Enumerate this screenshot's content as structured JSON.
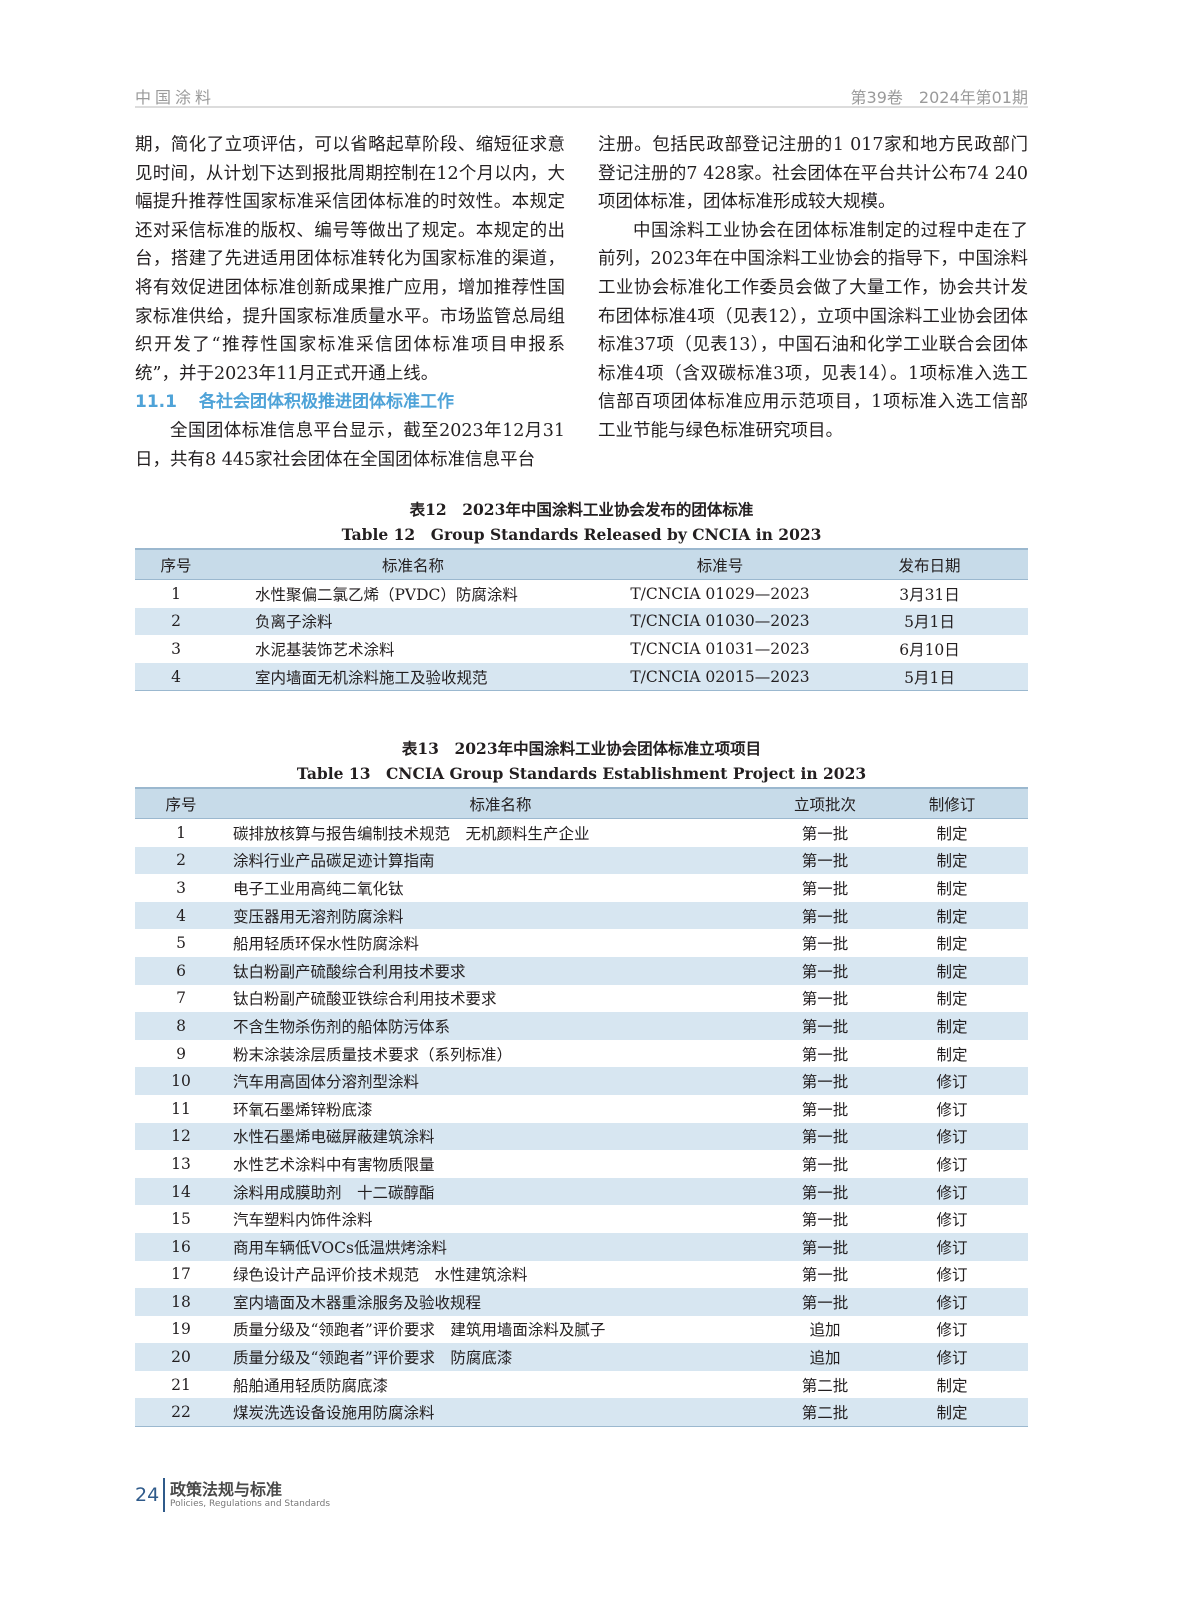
{
  "header": {
    "journal": "中国涂料",
    "issue": "第39卷　2024年第01期"
  },
  "left_column": {
    "para1": "期，简化了立项评估，可以省略起草阶段、缩短征求意见时间，从计划下达到报批周期控制在12个月以内，大幅提升推荐性国家标准采信团体标准的时效性。本规定还对采信标准的版权、编号等做出了规定。本规定的出台，搭建了先进适用团体标准转化为国家标准的渠道，将有效促进团体标准创新成果推广应用，增加推荐性国家标准供给，提升国家标准质量水平。市场监管总局组织开发了“推荐性国家标准采信团体标准项目申报系统”，并于2023年11月正式开通上线。",
    "section_number": "11.1",
    "section_title": "各社会团体积极推进团体标准工作",
    "para2": "全国团体标准信息平台显示，截至2023年12月31日，共有8 445家社会团体在全国团体标准信息平台"
  },
  "right_column": {
    "para1": "注册。包括民政部登记注册的1 017家和地方民政部门登记注册的7 428家。社会团体在平台共计公布74 240项团体标准，团体标准形成较大规模。",
    "para2": "中国涂料工业协会在团体标准制定的过程中走在了前列，2023年在中国涂料工业协会的指导下，中国涂料工业协会标准化工作委员会做了大量工作，协会共计发布团体标准4项（见表12），立项中国涂料工业协会团体标准37项（见表13），中国石油和化学工业联合会团体标准4项（含双碳标准3项，见表14）。1项标准入选工信部百项团体标准应用示范项目，1项标准入选工信部工业节能与绿色标准研究项目。"
  },
  "table12": {
    "title_zh": "表12　2023年中国涂料工业协会发布的团体标准",
    "title_en": "Table 12　Group Standards Released by CNCIA in 2023",
    "headers": [
      "序号",
      "标准名称",
      "标准号",
      "发布日期"
    ],
    "rows": [
      [
        "1",
        "水性聚偏二氯乙烯（PVDC）防腐涂料",
        "T/CNCIA 01029—2023",
        "3月31日"
      ],
      [
        "2",
        "负离子涂料",
        "T/CNCIA 01030—2023",
        "5月1日"
      ],
      [
        "3",
        "水泥基装饰艺术涂料",
        "T/CNCIA 01031—2023",
        "6月10日"
      ],
      [
        "4",
        "室内墙面无机涂料施工及验收规范",
        "T/CNCIA 02015—2023",
        "5月1日"
      ]
    ]
  },
  "table13": {
    "title_zh": "表13　2023年中国涂料工业协会团体标准立项项目",
    "title_en": "Table 13　CNCIA Group Standards Establishment Project in 2023",
    "headers": [
      "序号",
      "标准名称",
      "立项批次",
      "制修订"
    ],
    "rows": [
      [
        "1",
        "碳排放核算与报告编制技术规范　无机颜料生产企业",
        "第一批",
        "制定"
      ],
      [
        "2",
        "涂料行业产品碳足迹计算指南",
        "第一批",
        "制定"
      ],
      [
        "3",
        "电子工业用高纯二氧化钛",
        "第一批",
        "制定"
      ],
      [
        "4",
        "变压器用无溶剂防腐涂料",
        "第一批",
        "制定"
      ],
      [
        "5",
        "船用轻质环保水性防腐涂料",
        "第一批",
        "制定"
      ],
      [
        "6",
        "钛白粉副产硫酸综合利用技术要求",
        "第一批",
        "制定"
      ],
      [
        "7",
        "钛白粉副产硫酸亚铁综合利用技术要求",
        "第一批",
        "制定"
      ],
      [
        "8",
        "不含生物杀伤剂的船体防污体系",
        "第一批",
        "制定"
      ],
      [
        "9",
        "粉末涂装涂层质量技术要求（系列标准）",
        "第一批",
        "制定"
      ],
      [
        "10",
        "汽车用高固体分溶剂型涂料",
        "第一批",
        "修订"
      ],
      [
        "11",
        "环氧石墨烯锌粉底漆",
        "第一批",
        "修订"
      ],
      [
        "12",
        "水性石墨烯电磁屏蔽建筑涂料",
        "第一批",
        "修订"
      ],
      [
        "13",
        "水性艺术涂料中有害物质限量",
        "第一批",
        "修订"
      ],
      [
        "14",
        "涂料用成膜助剂　十二碳醇酯",
        "第一批",
        "修订"
      ],
      [
        "15",
        "汽车塑料内饰件涂料",
        "第一批",
        "修订"
      ],
      [
        "16",
        "商用车辆低VOCs低温烘烤涂料",
        "第一批",
        "修订"
      ],
      [
        "17",
        "绿色设计产品评价技术规范　水性建筑涂料",
        "第一批",
        "修订"
      ],
      [
        "18",
        "室内墙面及木器重涂服务及验收规程",
        "第一批",
        "修订"
      ],
      [
        "19",
        "质量分级及“领跑者”评价要求　建筑用墙面涂料及腻子",
        "追加",
        "修订"
      ],
      [
        "20",
        "质量分级及“领跑者”评价要求　防腐底漆",
        "追加",
        "修订"
      ],
      [
        "21",
        "船舶通用轻质防腐底漆",
        "第二批",
        "制定"
      ],
      [
        "22",
        "煤炭洗选设备设施用防腐涂料",
        "第二批",
        "制定"
      ]
    ]
  },
  "footer": {
    "page_number": "24",
    "section_zh": "政策法规与标准",
    "section_en": "Policies, Regulations and Standards"
  }
}
